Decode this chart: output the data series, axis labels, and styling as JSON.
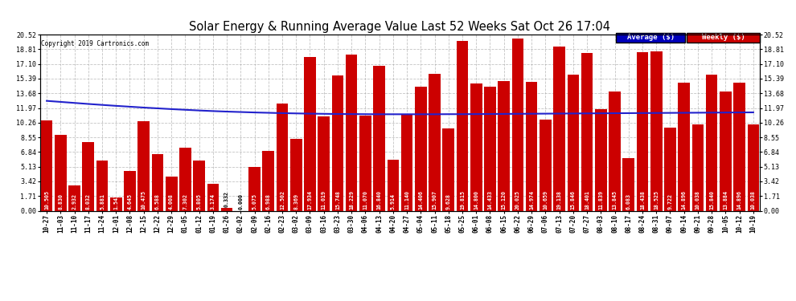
{
  "title": "Solar Energy & Running Average Value Last 52 Weeks Sat Oct 26 17:04",
  "copyright": "Copyright 2019 Cartronics.com",
  "legend_labels": [
    "Average ($)",
    "Weekly ($)"
  ],
  "legend_bg_colors": [
    "#0000bb",
    "#cc0000"
  ],
  "legend_text_colors": [
    "#ffffff",
    "#ffffff"
  ],
  "bar_color": "#cc0000",
  "line_color": "#2222cc",
  "background_color": "#ffffff",
  "plot_bg_color": "#ffffff",
  "grid_color": "#aaaaaa",
  "ylim": [
    0,
    20.52
  ],
  "yticks": [
    0.0,
    1.71,
    3.42,
    5.13,
    6.84,
    8.55,
    10.26,
    11.97,
    13.68,
    15.39,
    17.1,
    18.81,
    20.52
  ],
  "categories": [
    "10-27",
    "11-03",
    "11-10",
    "11-17",
    "11-24",
    "12-01",
    "12-08",
    "12-15",
    "12-22",
    "12-29",
    "01-05",
    "01-12",
    "01-19",
    "01-26",
    "02-02",
    "02-09",
    "02-16",
    "02-23",
    "03-02",
    "03-09",
    "03-16",
    "03-23",
    "03-30",
    "04-06",
    "04-13",
    "04-20",
    "04-27",
    "05-04",
    "05-11",
    "05-18",
    "05-25",
    "06-01",
    "06-08",
    "06-15",
    "06-22",
    "06-29",
    "07-06",
    "07-13",
    "07-20",
    "07-27",
    "08-03",
    "08-10",
    "08-17",
    "08-24",
    "08-31",
    "09-07",
    "09-14",
    "09-21",
    "09-28",
    "10-05",
    "10-12",
    "10-19"
  ],
  "bar_values": [
    10.505,
    8.83,
    2.932,
    8.032,
    5.881,
    1.543,
    4.645,
    10.475,
    6.588,
    4.008,
    7.302,
    5.805,
    3.174,
    0.332,
    0.0,
    5.075,
    6.988,
    12.502,
    8.369,
    17.934,
    11.019,
    15.748,
    18.229,
    11.07,
    16.84,
    5.914,
    11.14,
    14.406,
    15.907,
    9.628,
    19.815,
    14.8,
    14.433,
    15.12,
    20.025,
    14.974,
    10.659,
    19.138,
    15.846,
    18.401,
    11.839,
    13.845,
    6.083,
    18.438,
    18.525,
    9.722,
    14.896,
    10.038,
    15.84,
    13.884,
    14.896,
    10.038
  ],
  "avg_values": [
    12.8,
    12.68,
    12.56,
    12.44,
    12.33,
    12.22,
    12.12,
    12.02,
    11.93,
    11.84,
    11.76,
    11.68,
    11.61,
    11.55,
    11.5,
    11.45,
    11.41,
    11.37,
    11.34,
    11.31,
    11.29,
    11.27,
    11.26,
    11.25,
    11.24,
    11.24,
    11.24,
    11.24,
    11.24,
    11.25,
    11.25,
    11.26,
    11.27,
    11.28,
    11.29,
    11.3,
    11.31,
    11.32,
    11.33,
    11.34,
    11.35,
    11.36,
    11.37,
    11.38,
    11.39,
    11.4,
    11.41,
    11.42,
    11.43,
    11.44,
    11.45,
    11.46
  ]
}
